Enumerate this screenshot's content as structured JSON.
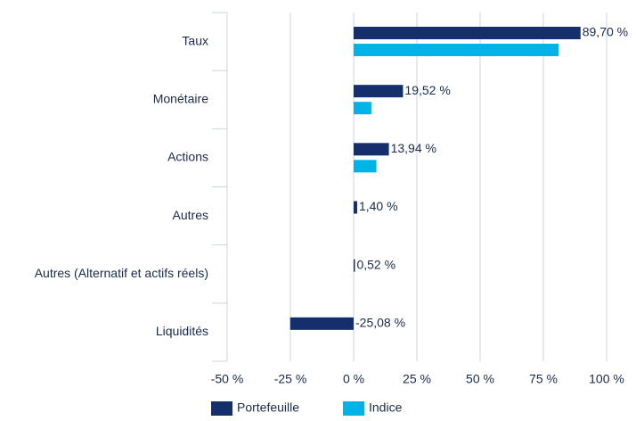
{
  "chart_data": {
    "type": "hbar",
    "categories": [
      "Taux",
      "Monétaire",
      "Actions",
      "Autres",
      "Autres (Alternatif et actifs réels)",
      "Liquidités"
    ],
    "series": [
      {
        "name": "Portefeuille",
        "color": "#142f6b",
        "values": [
          89.7,
          19.52,
          13.94,
          1.4,
          0.52,
          -25.08
        ],
        "value_labels": [
          "89,70 %",
          "19,52 %",
          "13,94 %",
          "1,40 %",
          "0,52 %",
          "-25,08 %"
        ]
      },
      {
        "name": "Indice",
        "color": "#00b3e6",
        "values": [
          81,
          7,
          9,
          0,
          0,
          0
        ]
      }
    ],
    "xlim": [
      -50,
      100
    ],
    "xticks": [
      {
        "value": -50,
        "label": "-50 %"
      },
      {
        "value": -25,
        "label": "-25 %"
      },
      {
        "value": 0,
        "label": "0 %"
      },
      {
        "value": 25,
        "label": "25 %"
      },
      {
        "value": 50,
        "label": "50 %"
      },
      {
        "value": 75,
        "label": "75 %"
      },
      {
        "value": 100,
        "label": "100 %"
      }
    ],
    "grid": true
  }
}
